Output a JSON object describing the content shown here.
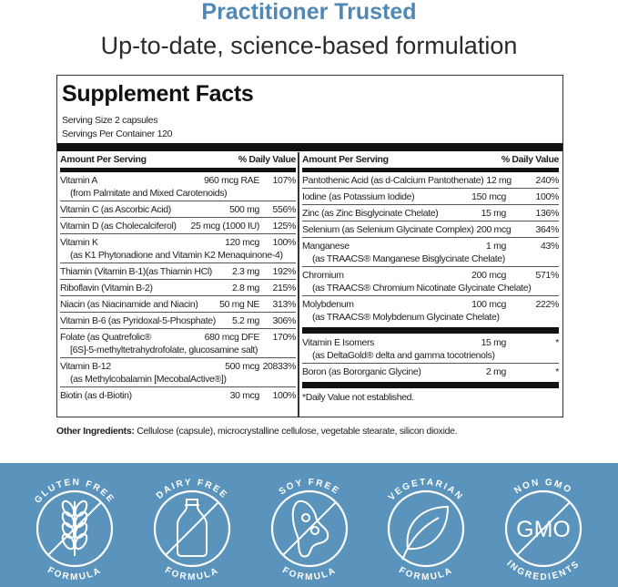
{
  "header": {
    "headline": "Practitioner Trusted",
    "subheadline": "Up-to-date, science-based formulation"
  },
  "facts": {
    "title": "Supplement Facts",
    "serving_size": "Serving Size 2 capsules",
    "servings_per_container": "Servings Per Container 120",
    "col_amount": "Amount Per Serving",
    "col_dv": "% Daily Value",
    "left": [
      {
        "name": "Vitamin A",
        "amount": "960 mcg RAE",
        "dv": "107%",
        "sub": "(from Palmitate and Mixed Carotenoids)"
      },
      {
        "name": "Vitamin C (as Ascorbic Acid)",
        "amount": "500 mg",
        "dv": "556%"
      },
      {
        "name": "Vitamin D (as Cholecalciferol)",
        "amount": "25 mcg (1000 IU)",
        "dv": "125%"
      },
      {
        "name": "Vitamin K",
        "amount": "120 mcg",
        "dv": "100%",
        "sub": "(as K1 Phytonadione and Vitamin K2 Menaquinone-4)"
      },
      {
        "name": "Thiamin (Vitamin B-1)(as Thiamin HCl)",
        "amount": "2.3 mg",
        "dv": "192%"
      },
      {
        "name": "Riboflavin (Vitamin B-2)",
        "amount": "2.8 mg",
        "dv": "215%"
      },
      {
        "name": "Niacin (as Niacinamide and Niacin)",
        "amount": "50 mg NE",
        "dv": "313%"
      },
      {
        "name": "Vitamin B-6 (as Pyridoxal-5-Phosphate)",
        "amount": "5.2 mg",
        "dv": "306%"
      },
      {
        "name": "Folate (as Quatrefolic®",
        "amount": "680 mcg DFE",
        "dv": "170%",
        "sub": "[6S]-5-methyltetrahydrofolate, glucosamine salt)"
      },
      {
        "name": "Vitamin B-12",
        "amount": "500 mcg",
        "dv": "20833%",
        "sub": "(as Methylcobalamin [MecobalActive®])"
      },
      {
        "name": "Biotin (as d-Biotin)",
        "amount": "30 mcg",
        "dv": "100%"
      }
    ],
    "right": [
      {
        "name": "Pantothenic Acid (as d-Calcium Pantothenate)",
        "amount": "12 mg",
        "dv": "240%"
      },
      {
        "name": "Iodine (as Potassium Iodide)",
        "amount": "150 mcg",
        "dv": "100%"
      },
      {
        "name": "Zinc (as Zinc Bisglycinate Chelate)",
        "amount": "15 mg",
        "dv": "136%"
      },
      {
        "name": "Selenium (as Selenium Glycinate Complex)",
        "amount": "200 mcg",
        "dv": "364%"
      },
      {
        "name": "Manganese",
        "amount": "1 mg",
        "dv": "43%",
        "sub": "(as TRAACS® Manganese Bisglycinate Chelate)"
      },
      {
        "name": "Chromium",
        "amount": "200 mcg",
        "dv": "571%",
        "sub": "(as TRAACS® Chromium Nicotinate Glycinate Chelate)"
      },
      {
        "name": "Molybdenum",
        "amount": "100 mcg",
        "dv": "222%",
        "sub": "(as TRAACS® Molybdenum Glycinate Chelate)"
      }
    ],
    "right_extra": [
      {
        "name": "Vitamin E Isomers",
        "amount": "15 mg",
        "dv": "*",
        "sub": "(as DeltaGold® delta and gamma tocotrienols)"
      },
      {
        "name": "Boron (as Bororganic Glycine)",
        "amount": "2 mg",
        "dv": "*"
      }
    ],
    "footnote": "*Daily Value not established."
  },
  "other_ingredients": {
    "label": "Other Ingredients:",
    "text": " Cellulose (capsule), microcrystalline cellulose, vegetable stearate, silicon dioxide."
  },
  "badges": [
    {
      "top": "GLUTEN FREE",
      "bottom": "FORMULA",
      "icon": "wheat-icon"
    },
    {
      "top": "DAIRY FREE",
      "bottom": "FORMULA",
      "icon": "milk-bottle-icon"
    },
    {
      "top": "SOY FREE",
      "bottom": "FORMULA",
      "icon": "soybean-icon"
    },
    {
      "top": "VEGETARIAN",
      "bottom": "FORMULA",
      "icon": "leaf-icon"
    },
    {
      "top": "NON GMO",
      "bottom": "INGREDIENTS",
      "icon": "gmo-icon",
      "center": "GMO"
    }
  ],
  "colors": {
    "accent": "#4f88b5",
    "band": "#5a94bd"
  }
}
